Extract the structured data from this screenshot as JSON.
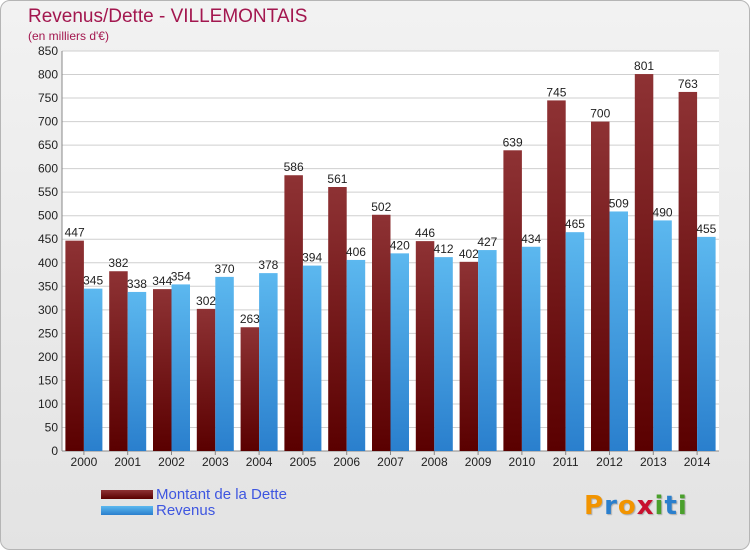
{
  "title": "Revenus/Dette - VILLEMONTAIS",
  "subtitle": "(en milliers d'€)",
  "colors": {
    "debt_top": "#8e3234",
    "debt_bottom": "#5a0000",
    "revenue_top": "#5cb8ef",
    "revenue_bottom": "#2a7fcd",
    "title": "#a3174f",
    "legend_text": "#3e56e0"
  },
  "chart_data": {
    "type": "bar",
    "categories": [
      "2000",
      "2001",
      "2002",
      "2003",
      "2004",
      "2005",
      "2006",
      "2007",
      "2008",
      "2009",
      "2010",
      "2011",
      "2012",
      "2013",
      "2014"
    ],
    "series": [
      {
        "name": "Montant de la Dette",
        "values": [
          447,
          382,
          344,
          302,
          263,
          586,
          561,
          502,
          446,
          402,
          639,
          745,
          700,
          801,
          763
        ]
      },
      {
        "name": "Revenus",
        "values": [
          345,
          338,
          354,
          370,
          378,
          394,
          406,
          420,
          412,
          427,
          434,
          465,
          509,
          490,
          455
        ]
      }
    ],
    "ylim": [
      0,
      850
    ],
    "ytick_step": 50,
    "grid": true
  },
  "logo": {
    "letters": [
      "P",
      "r",
      "o",
      "x",
      "i",
      "t",
      "i"
    ],
    "colors": [
      "#f29400",
      "#2a7fcd",
      "#f29400",
      "#c8102e",
      "#4aa02c",
      "#2a7fcd",
      "#4aa02c"
    ]
  }
}
